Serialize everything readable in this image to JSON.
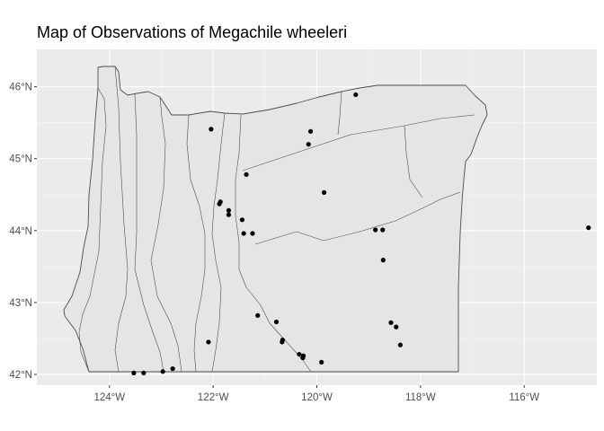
{
  "title": "Map of Observations of Megachile wheeleri",
  "colors": {
    "panel_background": "#ebebeb",
    "major_grid": "#ffffff",
    "minor_grid": "#f5f5f5",
    "state_fill": "#e5e5e5",
    "boundary_stroke": "#4d4d4d",
    "point": "#000000"
  },
  "chart_data": {
    "type": "scatter",
    "projection": "geographic",
    "title": "Map of Observations of Megachile wheeleri",
    "xlabel": "",
    "ylabel": "",
    "xlim": [
      -125.4,
      -114.6
    ],
    "ylim": [
      41.85,
      46.52
    ],
    "x_ticks": [
      -124,
      -122,
      -120,
      -118,
      -116
    ],
    "x_tick_labels": [
      "124°W",
      "122°W",
      "120°W",
      "118°W",
      "116°W"
    ],
    "y_ticks": [
      42,
      43,
      44,
      45,
      46
    ],
    "y_tick_labels": [
      "42°N",
      "43°N",
      "44°N",
      "45°N",
      "46°N"
    ],
    "grid": true,
    "legend": "none",
    "points": [
      {
        "lon": -119.25,
        "lat": 45.89
      },
      {
        "lon": -122.04,
        "lat": 45.41
      },
      {
        "lon": -120.12,
        "lat": 45.38
      },
      {
        "lon": -120.16,
        "lat": 45.2
      },
      {
        "lon": -121.36,
        "lat": 44.78
      },
      {
        "lon": -119.86,
        "lat": 44.53
      },
      {
        "lon": -121.88,
        "lat": 44.37
      },
      {
        "lon": -121.86,
        "lat": 44.4
      },
      {
        "lon": -121.7,
        "lat": 44.28
      },
      {
        "lon": -121.7,
        "lat": 44.22
      },
      {
        "lon": -121.44,
        "lat": 44.15
      },
      {
        "lon": -121.41,
        "lat": 43.96
      },
      {
        "lon": -121.24,
        "lat": 43.96
      },
      {
        "lon": -118.87,
        "lat": 44.01
      },
      {
        "lon": -118.73,
        "lat": 44.01
      },
      {
        "lon": -114.76,
        "lat": 44.04
      },
      {
        "lon": -118.72,
        "lat": 43.59
      },
      {
        "lon": -121.14,
        "lat": 42.82
      },
      {
        "lon": -120.78,
        "lat": 42.73
      },
      {
        "lon": -118.57,
        "lat": 42.72
      },
      {
        "lon": -118.47,
        "lat": 42.66
      },
      {
        "lon": -120.66,
        "lat": 42.48
      },
      {
        "lon": -120.67,
        "lat": 42.45
      },
      {
        "lon": -118.39,
        "lat": 42.41
      },
      {
        "lon": -122.09,
        "lat": 42.45
      },
      {
        "lon": -120.34,
        "lat": 42.28
      },
      {
        "lon": -120.26,
        "lat": 42.26
      },
      {
        "lon": -120.27,
        "lat": 42.23
      },
      {
        "lon": -119.91,
        "lat": 42.17
      },
      {
        "lon": -122.78,
        "lat": 42.08
      },
      {
        "lon": -122.97,
        "lat": 42.04
      },
      {
        "lon": -123.34,
        "lat": 42.02
      },
      {
        "lon": -123.53,
        "lat": 42.02
      }
    ]
  }
}
